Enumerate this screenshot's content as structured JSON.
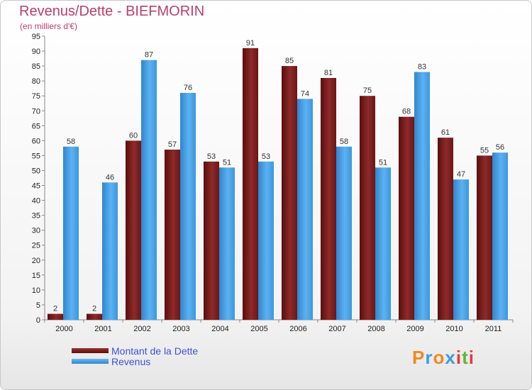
{
  "header": {
    "title": "Revenus/Dette - BIEFMORIN",
    "subtitle": "(en milliers d'€)"
  },
  "legend": {
    "items": [
      {
        "label": "Montant de la Dette",
        "color": "#7a1c1c"
      },
      {
        "label": "Revenus",
        "color": "#3d9be3"
      }
    ]
  },
  "logo": {
    "text": "Proxiti",
    "letter_colors": [
      "#f08a1c",
      "#3d9be3",
      "#f08a1c",
      "#3d9be3",
      "#e23b3b",
      "#5bb83a",
      "#e23b3b"
    ]
  },
  "chart_data": {
    "type": "bar",
    "title": "Revenus/Dette - BIEFMORIN",
    "subtitle": "(en milliers d'€)",
    "categories": [
      "2000",
      "2001",
      "2002",
      "2003",
      "2004",
      "2005",
      "2006",
      "2007",
      "2008",
      "2009",
      "2010",
      "2011"
    ],
    "series": [
      {
        "name": "Montant de la Dette",
        "color": "#7a1c1c",
        "values": [
          2,
          2,
          60,
          57,
          53,
          91,
          85,
          81,
          75,
          68,
          61,
          55
        ]
      },
      {
        "name": "Revenus",
        "color": "#3d9be3",
        "values": [
          58,
          46,
          87,
          76,
          51,
          53,
          74,
          58,
          51,
          83,
          47,
          56
        ]
      }
    ],
    "ylim": [
      0,
      95
    ],
    "ytick_step": 5,
    "grid": false,
    "legend_position": "bottom-left"
  }
}
